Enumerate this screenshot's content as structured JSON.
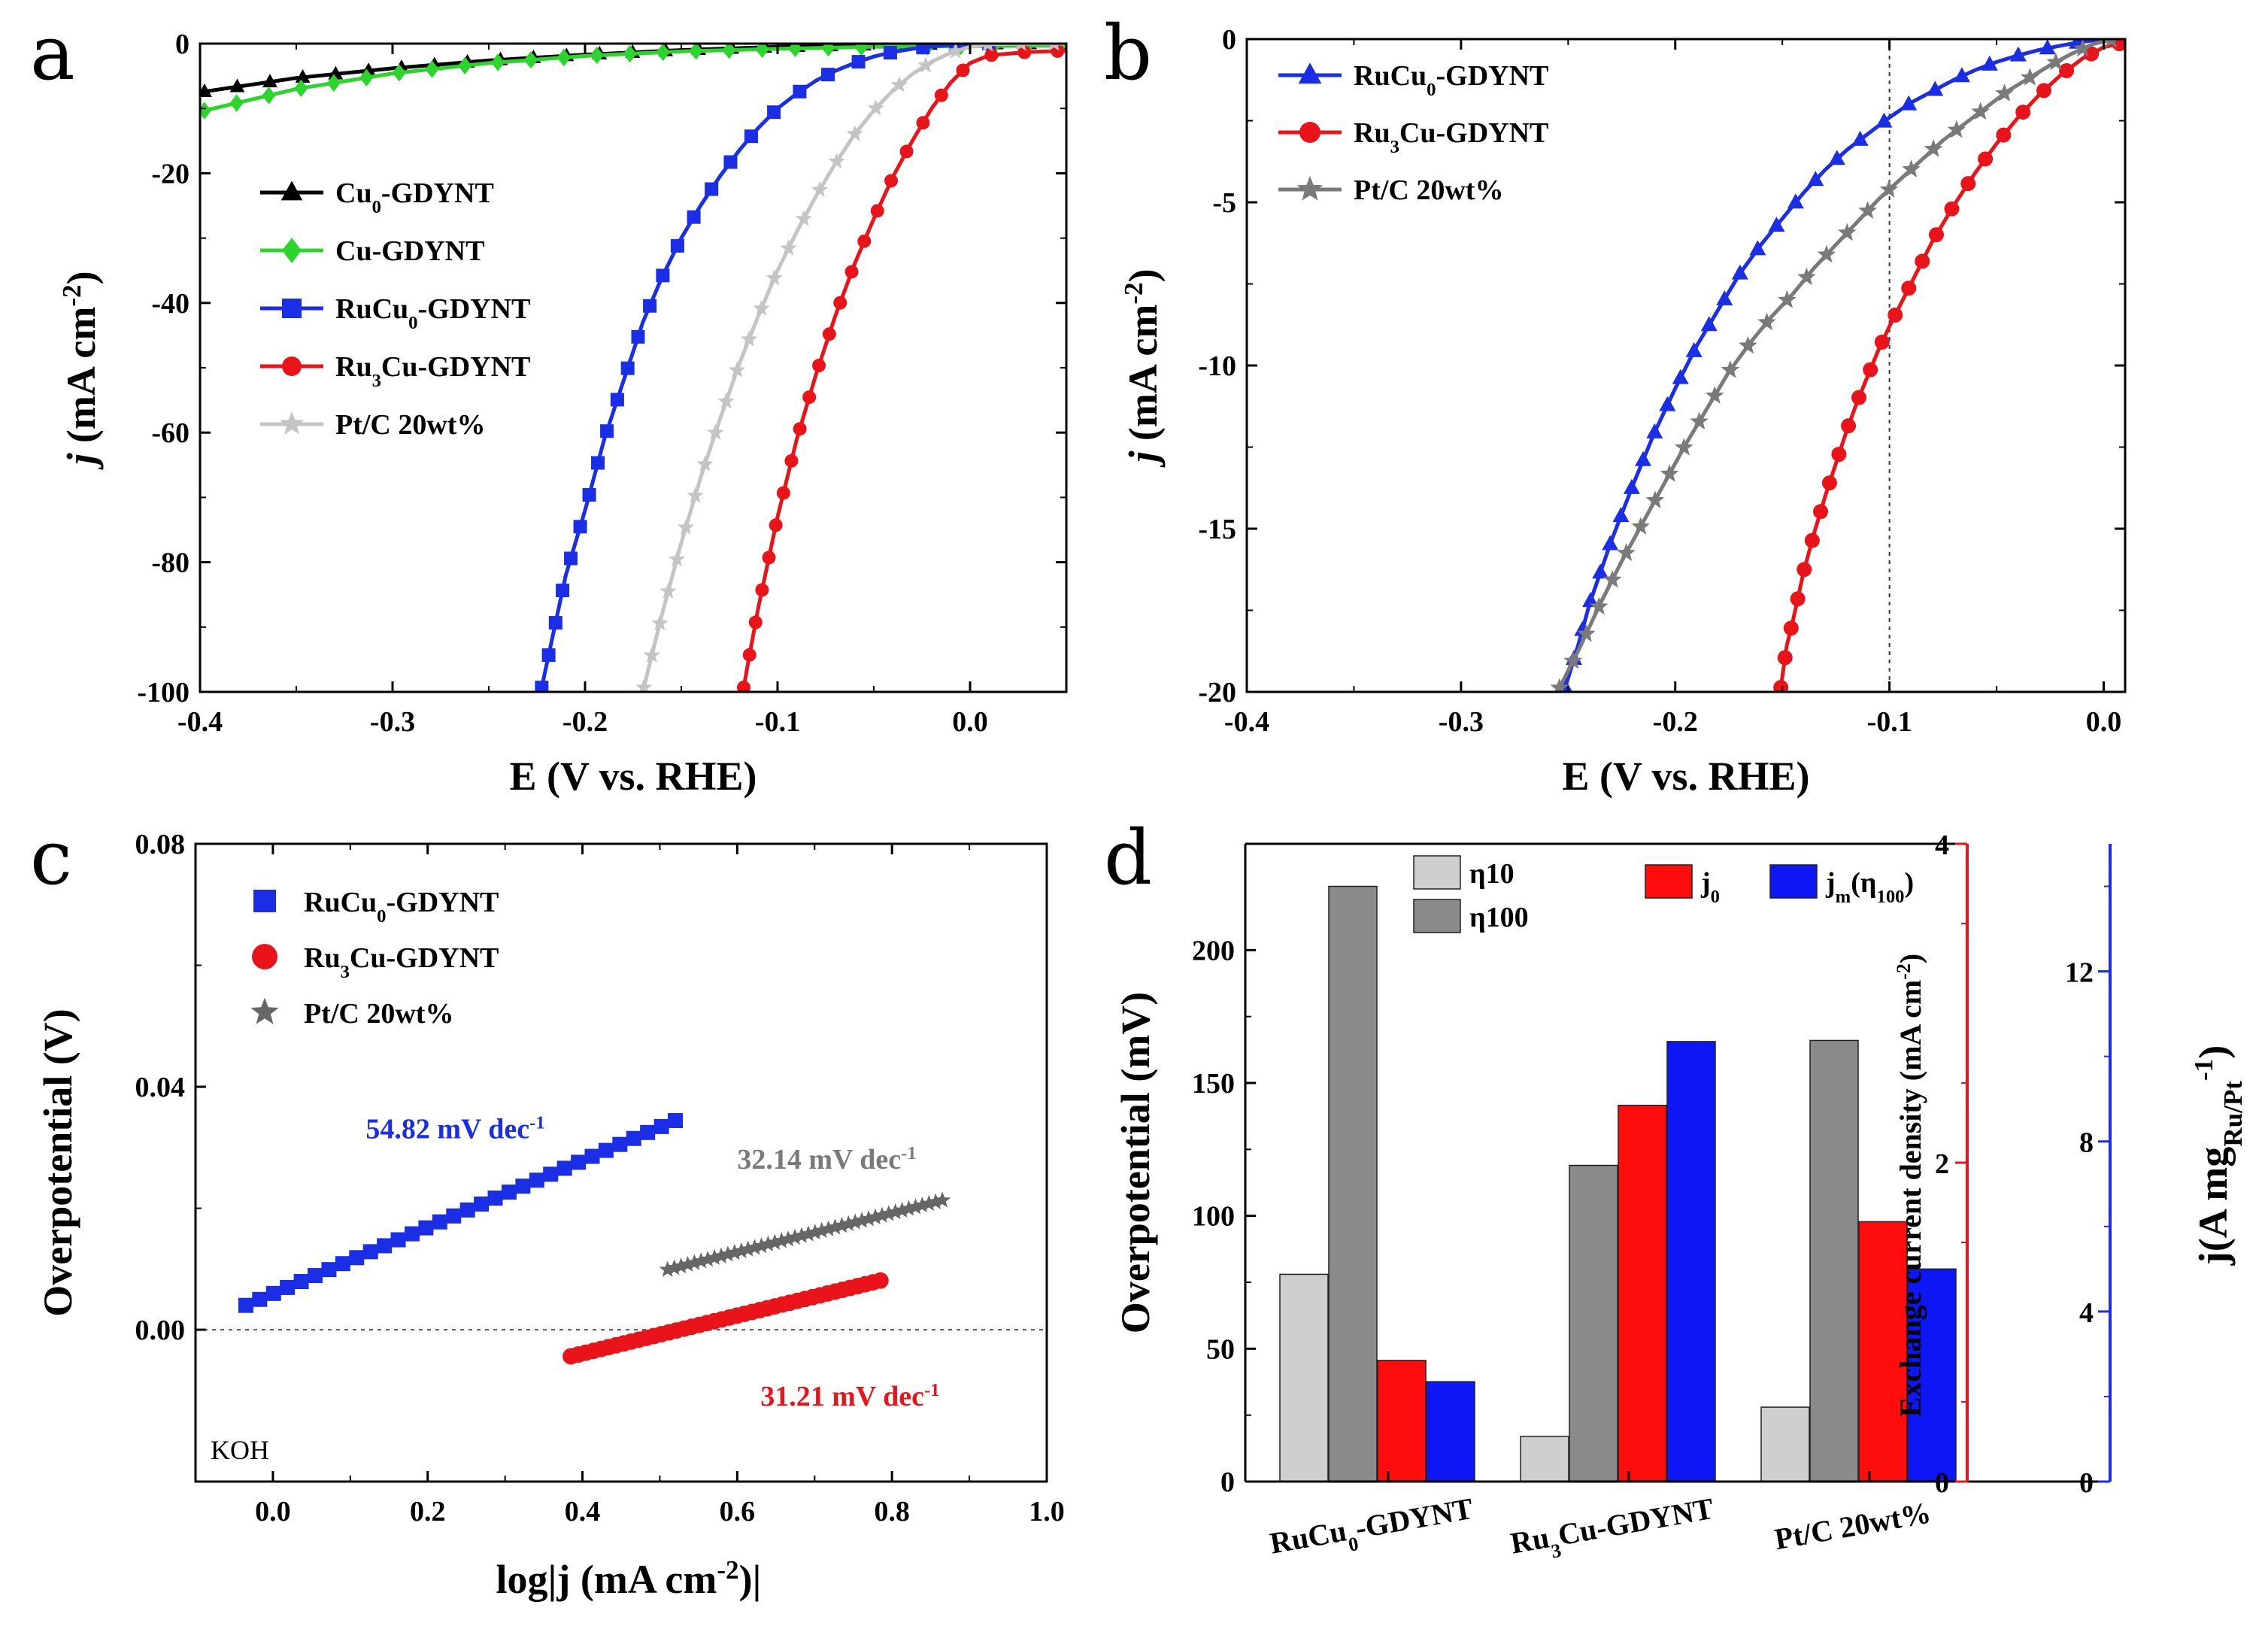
{
  "figure": {
    "panels": [
      "a",
      "b",
      "c",
      "d"
    ]
  },
  "chart_data": [
    {
      "id": "a",
      "type": "line",
      "xlabel": "E (V vs. RHE)",
      "ylabel_italic": "j",
      "ylabel_rest": " (mA cm",
      "ylabel_sup": "-2",
      "ylabel_end": ")",
      "xlim": [
        -0.4,
        0.05
      ],
      "ylim": [
        -100,
        0
      ],
      "xticks": [
        -0.4,
        -0.3,
        -0.2,
        -0.1,
        0.0
      ],
      "xtick_labels": [
        "-0.4",
        "-0.3",
        "-0.2",
        "-0.1",
        "0.0"
      ],
      "yticks": [
        0,
        -20,
        -40,
        -60,
        -80,
        -100
      ],
      "ytick_labels": [
        "0",
        "-20",
        "-40",
        "-60",
        "-80",
        "-100"
      ],
      "legend_position": "upper-left",
      "series": [
        {
          "name": "Cu0-GDYNT",
          "legend": [
            "Cu",
            "0",
            "-GDYNT"
          ],
          "color": "#000000",
          "marker": "triangle",
          "x": [
            -0.4,
            -0.35,
            -0.3,
            -0.25,
            -0.2,
            -0.15,
            -0.1,
            -0.05,
            0.0,
            0.05
          ],
          "y": [
            -7.5,
            -5.3,
            -3.8,
            -2.6,
            -1.7,
            -1.0,
            -0.5,
            -0.2,
            -0.05,
            0.0
          ]
        },
        {
          "name": "Cu-GDYNT",
          "legend": [
            "Cu-GDYNT",
            "",
            ""
          ],
          "color": "#2bd52b",
          "marker": "diamond",
          "x": [
            -0.4,
            -0.35,
            -0.3,
            -0.25,
            -0.2,
            -0.15,
            -0.1,
            -0.05,
            0.0,
            0.05
          ],
          "y": [
            -10.5,
            -7.0,
            -4.6,
            -3.0,
            -1.9,
            -1.2,
            -0.8,
            -0.5,
            -0.4,
            -0.3
          ]
        },
        {
          "name": "RuCu0-GDYNT",
          "legend": [
            "RuCu",
            "0",
            "-GDYNT"
          ],
          "color": "#1a2ee6",
          "marker": "square",
          "x": [
            -0.223,
            -0.21,
            -0.2,
            -0.19,
            -0.18,
            -0.17,
            -0.16,
            -0.15,
            -0.14,
            -0.13,
            -0.12,
            -0.11,
            -0.1,
            -0.09,
            -0.08,
            -0.07,
            -0.06,
            -0.05,
            -0.04,
            -0.03,
            -0.02,
            -0.01,
            0.0,
            0.01,
            0.02,
            0.03,
            0.05
          ],
          "y": [
            -100,
            -82,
            -72,
            -61,
            -52,
            -43,
            -36,
            -30,
            -25,
            -20.5,
            -16.5,
            -13,
            -10,
            -7.7,
            -5.7,
            -4.2,
            -3,
            -2,
            -1.3,
            -0.8,
            -0.45,
            -0.2,
            -0.08,
            0,
            0.3,
            0.5,
            0.6
          ]
        },
        {
          "name": "Ru3Cu-GDYNT",
          "legend": [
            "Ru",
            "3",
            "Cu-GDYNT"
          ],
          "color": "#e8141a",
          "marker": "circle",
          "x": [
            -0.118,
            -0.115,
            -0.11,
            -0.1,
            -0.09,
            -0.08,
            -0.07,
            -0.06,
            -0.05,
            -0.04,
            -0.03,
            -0.02,
            -0.01,
            0.0,
            0.01,
            0.03,
            0.05
          ],
          "y": [
            -100,
            -95,
            -87,
            -73,
            -61,
            -51,
            -42,
            -34,
            -27,
            -20.5,
            -15,
            -10,
            -6,
            -3,
            -1.8,
            -1.3,
            -1.1
          ]
        },
        {
          "name": "Pt/C 20wt%",
          "legend": [
            "Pt/C 20wt%",
            "",
            ""
          ],
          "color": "#c4c4c4",
          "marker": "star",
          "x": [
            -0.17,
            -0.16,
            -0.15,
            -0.14,
            -0.13,
            -0.12,
            -0.11,
            -0.1,
            -0.09,
            -0.08,
            -0.07,
            -0.06,
            -0.05,
            -0.04,
            -0.03,
            -0.02,
            -0.01,
            0.0,
            0.01,
            0.03,
            0.05
          ],
          "y": [
            -100,
            -88,
            -77,
            -67,
            -58,
            -49.5,
            -42,
            -35,
            -29,
            -23.5,
            -18.5,
            -14,
            -10.3,
            -7.2,
            -4.7,
            -2.8,
            -1.4,
            -0.5,
            -0.1,
            0,
            0
          ]
        }
      ]
    },
    {
      "id": "b",
      "type": "line",
      "xlabel": "E (V vs. RHE)",
      "ylabel_italic": "j",
      "ylabel_rest": " (mA cm",
      "ylabel_sup": "-2",
      "ylabel_end": ")",
      "xlim": [
        -0.4,
        0.01
      ],
      "ylim": [
        -20,
        0
      ],
      "xticks": [
        -0.4,
        -0.3,
        -0.2,
        -0.1,
        0.0
      ],
      "xtick_labels": [
        "-0.4",
        "-0.3",
        "-0.2",
        "-0.1",
        "0.0"
      ],
      "yticks": [
        0,
        -5,
        -10,
        -15,
        -20
      ],
      "ytick_labels": [
        "0",
        "-5",
        "-10",
        "-15",
        "-20"
      ],
      "ref_line_x": -0.1,
      "legend_position": "upper-left",
      "series": [
        {
          "name": "RuCu0-GDYNT",
          "legend": [
            "RuCu",
            "0",
            "-GDYNT"
          ],
          "color": "#1a2ee6",
          "marker": "triangle",
          "x": [
            -0.252,
            -0.245,
            -0.24,
            -0.23,
            -0.22,
            -0.21,
            -0.2,
            -0.19,
            -0.18,
            -0.17,
            -0.16,
            -0.15,
            -0.14,
            -0.13,
            -0.12,
            -0.11,
            -0.1,
            -0.09,
            -0.08,
            -0.07,
            -0.06,
            -0.05,
            -0.04,
            -0.03,
            -0.02,
            -0.01,
            0.0
          ],
          "y": [
            -20,
            -18.5,
            -17.3,
            -15.4,
            -13.7,
            -12.1,
            -10.7,
            -9.4,
            -8.3,
            -7.2,
            -6.3,
            -5.5,
            -4.7,
            -4.0,
            -3.4,
            -2.9,
            -2.4,
            -1.95,
            -1.6,
            -1.25,
            -0.95,
            -0.7,
            -0.5,
            -0.33,
            -0.2,
            -0.08,
            0
          ]
        },
        {
          "name": "Ru3Cu-GDYNT",
          "legend": [
            "Ru",
            "3",
            "Cu-GDYNT"
          ],
          "color": "#e8141a",
          "marker": "circle",
          "x": [
            -0.151,
            -0.148,
            -0.145,
            -0.14,
            -0.135,
            -0.13,
            -0.125,
            -0.12,
            -0.115,
            -0.11,
            -0.105,
            -0.1,
            -0.09,
            -0.08,
            -0.07,
            -0.06,
            -0.05,
            -0.04,
            -0.03,
            -0.02,
            -0.01,
            0.0,
            0.01
          ],
          "y": [
            -20,
            -18.6,
            -17.8,
            -16.3,
            -15.1,
            -14.0,
            -13.0,
            -12.0,
            -11.1,
            -10.3,
            -9.5,
            -8.8,
            -7.5,
            -6.2,
            -5.1,
            -4.1,
            -3.2,
            -2.4,
            -1.7,
            -1.1,
            -0.6,
            -0.25,
            -0.1
          ]
        },
        {
          "name": "Pt/C 20wt%",
          "legend": [
            "Pt/C 20wt%",
            "",
            ""
          ],
          "color": "#7a7a7a",
          "marker": "star",
          "x": [
            -0.255,
            -0.245,
            -0.235,
            -0.225,
            -0.215,
            -0.205,
            -0.195,
            -0.185,
            -0.175,
            -0.165,
            -0.155,
            -0.145,
            -0.135,
            -0.125,
            -0.115,
            -0.105,
            -0.095,
            -0.085,
            -0.075,
            -0.065,
            -0.055,
            -0.045,
            -0.035,
            -0.025,
            -0.015,
            -0.005,
            0.005
          ],
          "y": [
            -20,
            -18.7,
            -17.3,
            -16.0,
            -14.8,
            -13.6,
            -12.4,
            -11.3,
            -10.2,
            -9.3,
            -8.5,
            -7.8,
            -7.0,
            -6.3,
            -5.6,
            -4.9,
            -4.3,
            -3.7,
            -3.1,
            -2.6,
            -2.1,
            -1.6,
            -1.2,
            -0.8,
            -0.45,
            -0.15,
            0
          ]
        }
      ]
    },
    {
      "id": "c",
      "type": "scatter",
      "xlabel": "log|j (mA cm",
      "xlabel_sup": "-2",
      "xlabel_end": ")|",
      "ylabel": "Overpotential (V)",
      "xlim": [
        -0.1,
        1.0
      ],
      "ylim": [
        -0.025,
        0.08
      ],
      "xticks": [
        0.0,
        0.2,
        0.4,
        0.6,
        0.8,
        1.0
      ],
      "xtick_labels": [
        "0.0",
        "0.2",
        "0.4",
        "0.6",
        "0.8",
        "1.0"
      ],
      "yticks": [
        0.0,
        0.04,
        0.08
      ],
      "ytick_labels": [
        "0.00",
        "0.04",
        "0.08"
      ],
      "ref_line_y": 0.0,
      "corner_label": "KOH",
      "legend_position": "upper-left",
      "series": [
        {
          "name": "RuCu0-GDYNT",
          "legend": [
            "RuCu",
            "0",
            "-GDYNT"
          ],
          "color": "#1a2ee6",
          "marker": "square",
          "x_start": -0.035,
          "x_end": 0.52,
          "n": 32,
          "slope": 0.05482,
          "intercept": 0.00593
        },
        {
          "name": "Ru3Cu-GDYNT",
          "legend": [
            "Ru",
            "3",
            "Cu-GDYNT"
          ],
          "color": "#e8141a",
          "marker": "circle",
          "x_start": 0.385,
          "x_end": 0.785,
          "n": 42,
          "slope": 0.03121,
          "intercept": -0.0164
        },
        {
          "name": "Pt/C 20wt%",
          "legend": [
            "Pt/C 20wt%",
            "",
            ""
          ],
          "color": "#666666",
          "marker": "star",
          "x_start": 0.51,
          "x_end": 0.865,
          "n": 42,
          "slope": 0.03214,
          "intercept": -0.0065
        }
      ],
      "annotations": [
        {
          "text": "54.82 mV dec",
          "sup": "-1",
          "color": "#1a2ee6",
          "x": 0.12,
          "y": 0.0315
        },
        {
          "text": "32.14 mV dec",
          "sup": "-1",
          "color": "#7a7a7a",
          "x": 0.6,
          "y": 0.0265
        },
        {
          "text": "31.21 mV dec",
          "sup": "-1",
          "color": "#e8141a",
          "x": 0.63,
          "y": -0.0125
        }
      ]
    },
    {
      "id": "d",
      "type": "bar",
      "ylabel": "Overpotential (mV)",
      "ylabel_right1": "Exchange current density (mA cm",
      "ylabel_right1_sup": "-2",
      "ylabel_right1_end": ")",
      "ylabel_right2_pre": "j(A mg",
      "ylabel_right2_sub": "Ru/Pt",
      "ylabel_right2_sup": "-1",
      "ylabel_right2_end": ")",
      "categories": [
        "RuCu0-GDYNT",
        "Ru3Cu-GDYNT",
        "Pt/C 20wt%"
      ],
      "category_labels": [
        [
          "RuCu",
          "0",
          "-GDYNT"
        ],
        [
          "Ru",
          "3",
          "Cu-GDYNT"
        ],
        [
          "Pt/C 20wt%",
          "",
          ""
        ]
      ],
      "ylim_left": [
        0,
        240
      ],
      "yticks_left": [
        0,
        50,
        100,
        150,
        200
      ],
      "ytick_labels_left": [
        "0",
        "50",
        "100",
        "150",
        "200"
      ],
      "ylim_right1": [
        0,
        4
      ],
      "yticks_right1": [
        0,
        2,
        4
      ],
      "ytick_labels_right1": [
        "0",
        "2",
        "4"
      ],
      "right1_color": "#e8141a",
      "ylim_right2": [
        0,
        15
      ],
      "yticks_right2": [
        0,
        4,
        8,
        12
      ],
      "ytick_labels_right2": [
        "0",
        "4",
        "8",
        "12"
      ],
      "right2_color": "#1a2ee6",
      "series": [
        {
          "name": "η10",
          "legend": [
            "η10",
            "",
            ""
          ],
          "axis": "left",
          "color": "#cfcfcf",
          "values": [
            78,
            17,
            28
          ]
        },
        {
          "name": "η100",
          "legend": [
            "η100",
            "",
            ""
          ],
          "axis": "left",
          "color": "#8a8a8a",
          "values": [
            224,
            119,
            166
          ]
        },
        {
          "name": "j0",
          "legend": [
            "j",
            "0",
            ""
          ],
          "axis": "right1",
          "color": "#ff0d0d",
          "values": [
            0.76,
            2.36,
            1.63
          ]
        },
        {
          "name": "jm(η100)",
          "legend": [
            "j",
            "m",
            "(η",
            "100",
            ")"
          ],
          "axis": "right2",
          "color": "#0d16f5",
          "values": [
            2.35,
            10.35,
            5.0
          ]
        }
      ]
    }
  ]
}
